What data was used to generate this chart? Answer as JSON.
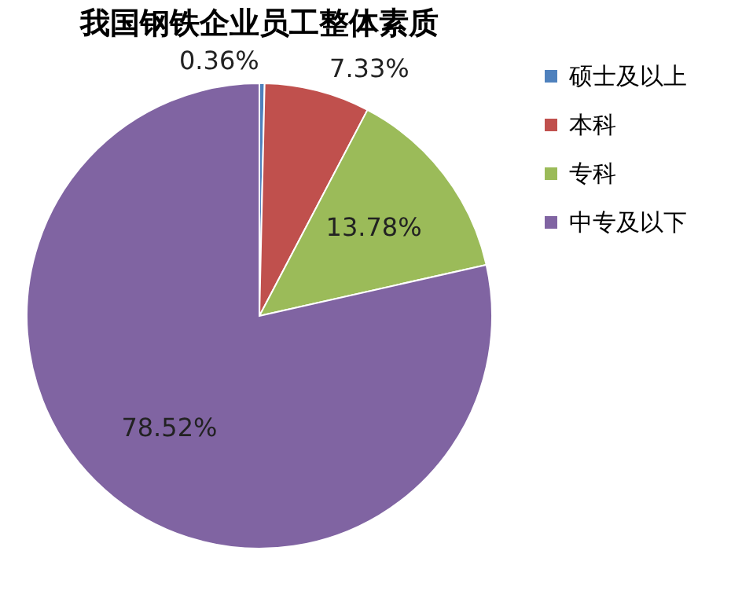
{
  "chart_data": {
    "type": "pie",
    "title": "我国钢铁企业员工整体素质",
    "categories": [
      "硕士及以上",
      "本科",
      "专科",
      "中专及以下"
    ],
    "values": [
      0.36,
      7.33,
      13.78,
      78.52
    ],
    "colors": [
      "#4f81bd",
      "#c0504d",
      "#9bbb59",
      "#8064a2"
    ],
    "value_labels": [
      "0.36%",
      "7.33%",
      "13.78%",
      "78.52%"
    ],
    "legend": "right"
  }
}
